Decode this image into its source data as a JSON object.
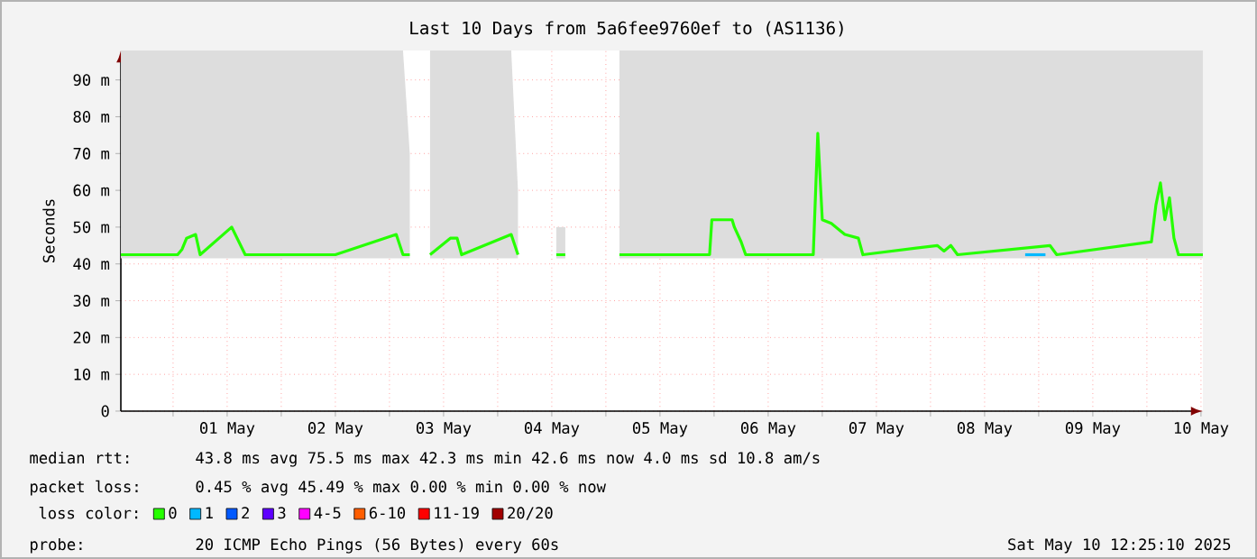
{
  "chart_data": {
    "type": "line",
    "title": "Last 10 Days from 5a6fee9760ef to (AS1136)",
    "ylabel": "Seconds",
    "xlim": [
      "2025-04-30T12:25",
      "2025-05-10T12:25"
    ],
    "xticks": [
      {
        "value": "2025-05-01T00:00",
        "label": null
      },
      {
        "value": "2025-05-01T12:00",
        "label": "01 May"
      },
      {
        "value": "2025-05-02T00:00",
        "label": null
      },
      {
        "value": "2025-05-02T12:00",
        "label": "02 May"
      },
      {
        "value": "2025-05-03T00:00",
        "label": null
      },
      {
        "value": "2025-05-03T12:00",
        "label": "03 May"
      },
      {
        "value": "2025-05-04T00:00",
        "label": null
      },
      {
        "value": "2025-05-04T12:00",
        "label": "04 May"
      },
      {
        "value": "2025-05-05T00:00",
        "label": null
      },
      {
        "value": "2025-05-05T12:00",
        "label": "05 May"
      },
      {
        "value": "2025-05-06T00:00",
        "label": null
      },
      {
        "value": "2025-05-06T12:00",
        "label": "06 May"
      },
      {
        "value": "2025-05-07T00:00",
        "label": null
      },
      {
        "value": "2025-05-07T12:00",
        "label": "07 May"
      },
      {
        "value": "2025-05-08T00:00",
        "label": null
      },
      {
        "value": "2025-05-08T12:00",
        "label": "08 May"
      },
      {
        "value": "2025-05-09T00:00",
        "label": null
      },
      {
        "value": "2025-05-09T12:00",
        "label": "09 May"
      },
      {
        "value": "2025-05-10T00:00",
        "label": null
      },
      {
        "value": "2025-05-10T12:00",
        "label": "10 May"
      }
    ],
    "ylim": [
      0,
      98
    ],
    "yticks": [
      0,
      {
        "value": 10,
        "label": "10 m"
      },
      {
        "value": 20,
        "label": "20 m"
      },
      {
        "value": 30,
        "label": "30 m"
      },
      {
        "value": 40,
        "label": "40 m"
      },
      {
        "value": 50,
        "label": "50 m"
      },
      {
        "value": 60,
        "label": "60 m"
      },
      {
        "value": 70,
        "label": "70 m"
      },
      {
        "value": 80,
        "label": "80 m"
      },
      {
        "value": 90,
        "label": "90 m"
      }
    ],
    "grid": true,
    "legend": "bottom",
    "legend_title": "loss color:",
    "series": [
      {
        "name": "0",
        "color": "#26ff00",
        "x": [
          "2025-04-30T12:25",
          "2025-05-01T01:00",
          "2025-05-01T02:00",
          "2025-05-01T03:00",
          "2025-05-01T05:00",
          "2025-05-01T06:00",
          "2025-05-01T13:00",
          "2025-05-01T16:00",
          "2025-05-02T12:00",
          "2025-05-03T01:30",
          "2025-05-03T03:00",
          "2025-05-03T04:30",
          "2025-05-03T06:00",
          "2025-05-03T09:00",
          "2025-05-03T13:30",
          "2025-05-03T15:00",
          "2025-05-03T16:00",
          "2025-05-04T03:00",
          "2025-05-04T04:30",
          "2025-05-04T06:00",
          "2025-05-04T13:00",
          "2025-05-04T15:00",
          "2025-05-04T18:00",
          "2025-05-05T03:00",
          "2025-05-05T23:00",
          "2025-05-05T23:30",
          "2025-05-06T04:00",
          "2025-05-06T04:30",
          "2025-05-06T06:00",
          "2025-05-06T07:00",
          "2025-05-06T22:00",
          "2025-05-06T23:00",
          "2025-05-07T00:00",
          "2025-05-07T02:00",
          "2025-05-07T04:00",
          "2025-05-07T05:00",
          "2025-05-07T08:00",
          "2025-05-07T09:00",
          "2025-05-08T01:30",
          "2025-05-08T03:00",
          "2025-05-08T04:30",
          "2025-05-08T06:00",
          "2025-05-09T02:30",
          "2025-05-09T04:00",
          "2025-05-10T01:00",
          "2025-05-10T02:00",
          "2025-05-10T03:00",
          "2025-05-10T04:00",
          "2025-05-10T05:00",
          "2025-05-10T06:00",
          "2025-05-10T07:00",
          "2025-05-10T12:25"
        ],
        "values": [
          42.5,
          42.5,
          44,
          47,
          48,
          42.5,
          50,
          42.5,
          42.5,
          48,
          42.5,
          42.5,
          null,
          42.5,
          47,
          47,
          42.5,
          48,
          42.5,
          null,
          42.5,
          42.5,
          null,
          42.5,
          42.5,
          52,
          52,
          50,
          46,
          42.5,
          42.5,
          75.5,
          52,
          51,
          49,
          48,
          47,
          42.5,
          45,
          43.5,
          45,
          42.5,
          45,
          42.5,
          46,
          56,
          62,
          52,
          58,
          47,
          42.5,
          42.5
        ],
        "lower": [
          41.5,
          41.5,
          41.5,
          41.5,
          41.5,
          41.5,
          41.5,
          41.5,
          41.5,
          41.5,
          41.5,
          41.5,
          null,
          41.5,
          41.5,
          41.5,
          41.5,
          41.5,
          41.5,
          null,
          41.5,
          41.5,
          null,
          41.5,
          41.5,
          41.5,
          41.5,
          41.5,
          41.5,
          41.5,
          41.5,
          41.5,
          41.5,
          41.5,
          41.5,
          41.5,
          41.5,
          41.5,
          41.5,
          41.5,
          41.5,
          41.5,
          41.5,
          41.5,
          41.5,
          41.5,
          41.5,
          41.5,
          41.5,
          41.5,
          41.5,
          41.5
        ],
        "upper": [
          98,
          98,
          98,
          98,
          98,
          98,
          98,
          98,
          98,
          98,
          98,
          70,
          null,
          98,
          98,
          98,
          98,
          98,
          60,
          null,
          50,
          50,
          null,
          98,
          98,
          98,
          98,
          98,
          98,
          98,
          98,
          98,
          98,
          98,
          98,
          98,
          98,
          98,
          98,
          98,
          98,
          98,
          98,
          98,
          98,
          98,
          98,
          98,
          98,
          98,
          98,
          98
        ]
      },
      {
        "name": "1",
        "color": "#00b8ff",
        "x": [
          "2025-05-08T21:00",
          "2025-05-09T01:30"
        ],
        "values": [
          42.5,
          42.5
        ]
      },
      {
        "name": "2",
        "color": "#0059ff"
      },
      {
        "name": "3",
        "color": "#5e00ff"
      },
      {
        "name": "4-5",
        "color": "#ff00ff"
      },
      {
        "name": "6-10",
        "color": "#ff5e00"
      },
      {
        "name": "11-19",
        "color": "#ff0000"
      },
      {
        "name": "20/20",
        "color": "#a10000"
      }
    ],
    "annotations": [
      "median rtt:",
      "43.8 ms avg  75.5 ms max  42.3 ms min  42.6 ms now  4.0 ms sd  10.8   am/s",
      "packet loss:",
      "0.45 % avg  45.49 % max  0.00 % min  0.00 % now",
      "probe:",
      "20 ICMP Echo Pings (56 Bytes) every 60s",
      "Sat May 10 12:25:10 2025"
    ]
  }
}
